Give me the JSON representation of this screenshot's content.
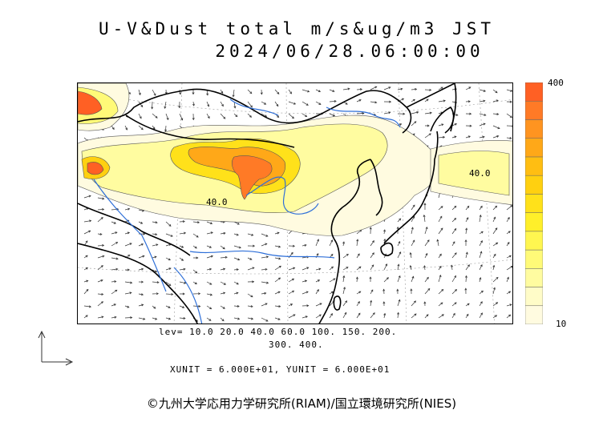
{
  "title": {
    "line1": "U-V&Dust total m/s&ug/m3 JST",
    "line2": "2024/06/28.06:00:00"
  },
  "colorbar": {
    "max_label": "400",
    "min_label": "10",
    "colors": [
      "#fffbe0",
      "#fffcc8",
      "#fffca0",
      "#fffa78",
      "#fff650",
      "#ffef2a",
      "#ffe11a",
      "#ffd010",
      "#ffbe12",
      "#ffa818",
      "#ff9420",
      "#ff7a26",
      "#ff6024"
    ]
  },
  "levels": {
    "line1": "lev= 10.0 20.0 40.0 60.0 100. 150. 200.",
    "line2": "300. 400."
  },
  "units": "XUNIT = 6.000E+01, YUNIT = 6.000E+01",
  "contour_labels": [
    "40.0",
    "40.0"
  ],
  "credit": "©九州大学応用力学研究所(RIAM)/国立環境研究所(NIES)",
  "palette": {
    "coast": "#000000",
    "river": "#2e6fd8",
    "wind": "#333333"
  }
}
